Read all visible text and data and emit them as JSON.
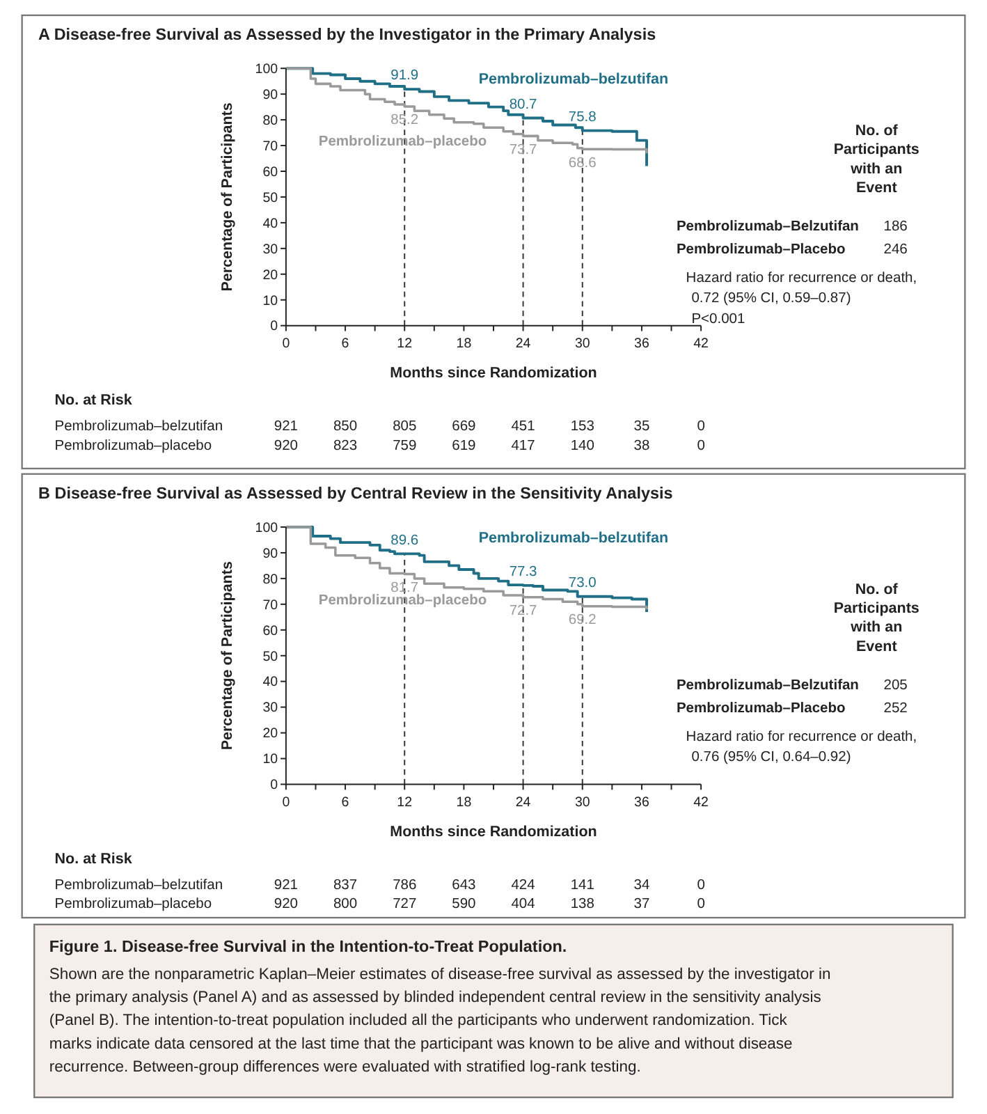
{
  "chart_data": [
    {
      "type": "step",
      "title": "A  Disease-free Survival as Assessed by the Investigator in the Primary Analysis",
      "xlabel": "Months since Randomization",
      "ylabel": "Percentage of Participants",
      "xlim": [
        0,
        42
      ],
      "ylim": [
        0,
        100
      ],
      "xticks": [
        0,
        {
          "value": 3,
          "label": null
        },
        6,
        {
          "value": 9,
          "label": null
        },
        12,
        {
          "value": 15,
          "label": null
        },
        18,
        {
          "value": 21,
          "label": null
        },
        24,
        {
          "value": 27,
          "label": null
        },
        30,
        {
          "value": 33,
          "label": null
        },
        36,
        {
          "value": 39,
          "label": null
        },
        42
      ],
      "yticks": [
        0,
        10,
        20,
        30,
        40,
        50,
        60,
        70,
        80,
        90,
        100
      ],
      "series": [
        {
          "name": "Pembrolizumab–belzutifan",
          "color": "#1f6f86",
          "x": [
            0,
            2.7,
            4.5,
            6,
            7.5,
            9,
            10.5,
            12,
            13.5,
            15,
            16.5,
            18.5,
            20.5,
            22,
            22.5,
            24,
            26,
            27,
            29.3,
            30,
            33,
            35.5,
            36.5
          ],
          "values": [
            100,
            98,
            97.5,
            96,
            95,
            94,
            93,
            91.9,
            91,
            89,
            87.5,
            86.5,
            85,
            83.5,
            82,
            80.7,
            79.5,
            78,
            77,
            75.8,
            75.5,
            72,
            62
          ]
        },
        {
          "name": "Pembrolizumab–placebo",
          "color": "#9a9a9a",
          "x": [
            0,
            2.5,
            3,
            4.5,
            5.5,
            8,
            8.5,
            10,
            11,
            12,
            13,
            14.5,
            16,
            17,
            19,
            20,
            22,
            23,
            24,
            25.5,
            27,
            29,
            29.5,
            30,
            33,
            36.5
          ],
          "values": [
            100,
            96,
            94,
            93,
            91.5,
            90,
            88,
            87,
            86,
            85.2,
            83.5,
            82,
            80.5,
            79,
            78.5,
            77,
            75.5,
            74.5,
            73.7,
            72,
            71,
            70.5,
            69,
            68.6,
            68.5,
            67
          ]
        }
      ],
      "ref_lines": [
        {
          "axis": "x",
          "value": 12,
          "line_style": "dashed"
        },
        {
          "axis": "x",
          "value": 24,
          "line_style": "dashed"
        },
        {
          "axis": "x",
          "value": 30,
          "line_style": "dashed"
        }
      ],
      "annotations": [
        {
          "text": "91.9",
          "x": 12,
          "y": 91.9
        },
        {
          "text": "80.7",
          "x": 24,
          "y": 80.7
        },
        {
          "text": "75.8",
          "x": 30,
          "y": 75.8
        },
        {
          "text": "85.2",
          "x": 12,
          "y": 85.2
        },
        {
          "text": "73.7",
          "x": 24,
          "y": 73.7
        },
        {
          "text": "68.6",
          "x": 30,
          "y": 68.6
        },
        "No. of Participants with an Event",
        "Pembrolizumab–Belzutifan\t186",
        "Pembrolizumab–Placebo\t246",
        "Hazard ratio for recurrence or death, 0.72 (95% CI, 0.59–0.87)",
        "P<0.001",
        "No. at Risk",
        "Pembrolizumab–belzutifan\t921\t850\t805\t669\t451\t153\t35\t0",
        "Pembrolizumab–placebo\t920\t823\t759\t619\t417\t140\t38\t0"
      ]
    },
    {
      "type": "step",
      "title": "B  Disease-free Survival as Assessed by Central Review in the Sensitivity Analysis",
      "xlabel": "Months since Randomization",
      "ylabel": "Percentage of Participants",
      "xlim": [
        0,
        42
      ],
      "ylim": [
        0,
        100
      ],
      "xticks": [
        0,
        {
          "value": 3,
          "label": null
        },
        6,
        {
          "value": 9,
          "label": null
        },
        12,
        {
          "value": 15,
          "label": null
        },
        18,
        {
          "value": 21,
          "label": null
        },
        24,
        {
          "value": 27,
          "label": null
        },
        30,
        {
          "value": 33,
          "label": null
        },
        36,
        {
          "value": 39,
          "label": null
        },
        42
      ],
      "yticks": [
        0,
        10,
        20,
        30,
        40,
        50,
        60,
        70,
        80,
        90,
        100
      ],
      "series": [
        {
          "name": "Pembrolizumab–belzutifan",
          "color": "#1f6f86",
          "x": [
            0,
            2.7,
            4.5,
            5.5,
            8.5,
            9.5,
            10.5,
            11,
            13.5,
            14,
            16.5,
            17.5,
            19,
            19.5,
            21.5,
            22.5,
            24,
            25,
            26,
            28.5,
            29.5,
            30,
            33,
            35,
            36.5
          ],
          "values": [
            100,
            96.5,
            95.5,
            94,
            93,
            91,
            90.5,
            89.6,
            89,
            86.5,
            85,
            83.5,
            82,
            80,
            79,
            77.5,
            77.3,
            77,
            75.5,
            75,
            73,
            73.0,
            72.5,
            72,
            67
          ]
        },
        {
          "name": "Pembrolizumab–placebo",
          "color": "#9a9a9a",
          "x": [
            0,
            2.5,
            4,
            5,
            7,
            8.5,
            9.5,
            10.5,
            12,
            13,
            14,
            16,
            18,
            20,
            22,
            24,
            26,
            28,
            29.5,
            30,
            33,
            36.5
          ],
          "values": [
            100,
            93.5,
            92,
            89,
            88,
            86,
            84,
            82,
            81.7,
            80,
            78,
            76.5,
            76,
            75,
            73.5,
            72.7,
            72,
            71,
            70,
            69.2,
            69,
            68
          ]
        }
      ],
      "ref_lines": [
        {
          "axis": "x",
          "value": 12,
          "line_style": "dashed"
        },
        {
          "axis": "x",
          "value": 24,
          "line_style": "dashed"
        },
        {
          "axis": "x",
          "value": 30,
          "line_style": "dashed"
        }
      ],
      "annotations": [
        {
          "text": "89.6",
          "x": 12,
          "y": 89.6
        },
        {
          "text": "77.3",
          "x": 24,
          "y": 77.3
        },
        {
          "text": "73.0",
          "x": 30,
          "y": 73.0
        },
        {
          "text": "81.7",
          "x": 12,
          "y": 81.7
        },
        {
          "text": "72.7",
          "x": 24,
          "y": 72.7
        },
        {
          "text": "69.2",
          "x": 30,
          "y": 69.2
        },
        "No. of Participants with an Event",
        "Pembrolizumab–Belzutifan\t205",
        "Pembrolizumab–Placebo\t252",
        "Hazard ratio for recurrence or death, 0.76 (95% CI, 0.64–0.92)",
        "No. at Risk",
        "Pembrolizumab–belzutifan\t921\t837\t786\t643\t424\t141\t34\t0",
        "Pembrolizumab–placebo\t920\t800\t727\t590\t404\t138\t37\t0"
      ]
    },
    {
      "type": "other",
      "title": "Figure 1. Disease-free Survival in the Intention-to-Treat Population.",
      "annotations": [
        "Shown are the nonparametric Kaplan–Meier estimates of disease-free survival as assessed by the investigator in the primary analysis (Panel A) and as assessed by blinded independent central review in the sensitivity analysis (Panel B). The intention-to-treat population included all the participants who underwent randomization. Tick marks indicate data censored at the last time that the participant was known to be alive and without disease recurrence. Between-group differences were evaluated with stratified log-rank testing."
      ]
    }
  ]
}
